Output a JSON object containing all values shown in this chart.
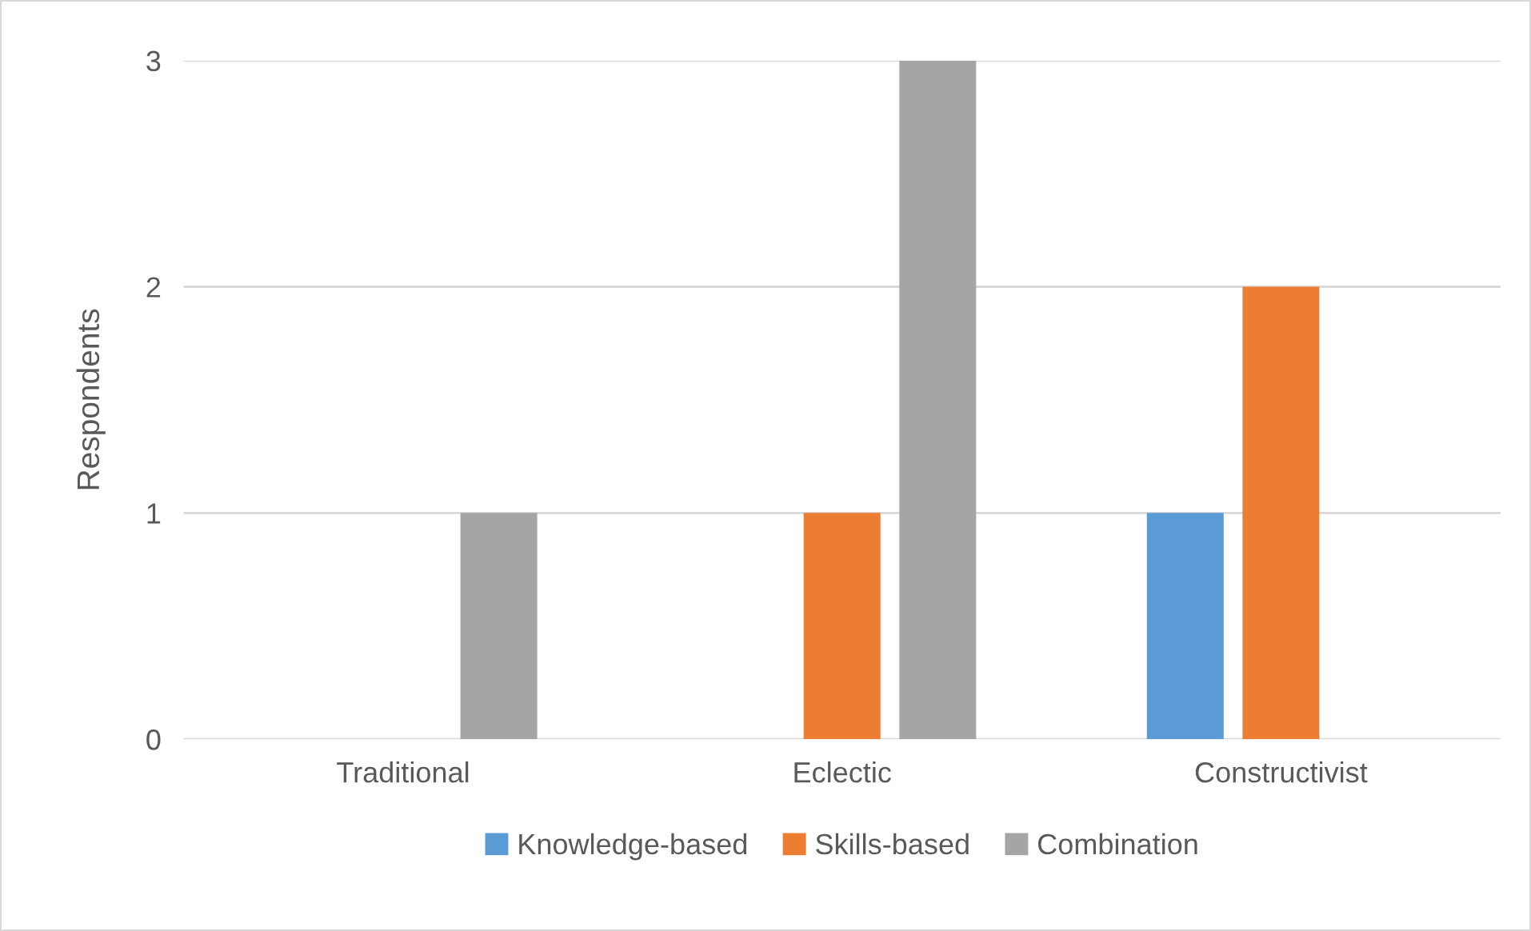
{
  "chart_data": {
    "type": "bar",
    "ylabel": "Respondents",
    "categories": [
      "Traditional",
      "Eclectic",
      "Constructivist"
    ],
    "series": [
      {
        "name": "Knowledge-based",
        "color": "#5b9bd5",
        "values": [
          0,
          0,
          1
        ]
      },
      {
        "name": "Skills-based",
        "color": "#ed7d31",
        "values": [
          0,
          1,
          2
        ]
      },
      {
        "name": "Combination",
        "color": "#a5a5a5",
        "values": [
          1,
          3,
          0
        ]
      }
    ],
    "ylim": [
      0,
      3
    ],
    "yticks": [
      0,
      1,
      2,
      3
    ],
    "grid": "y",
    "legend": "bottom"
  }
}
